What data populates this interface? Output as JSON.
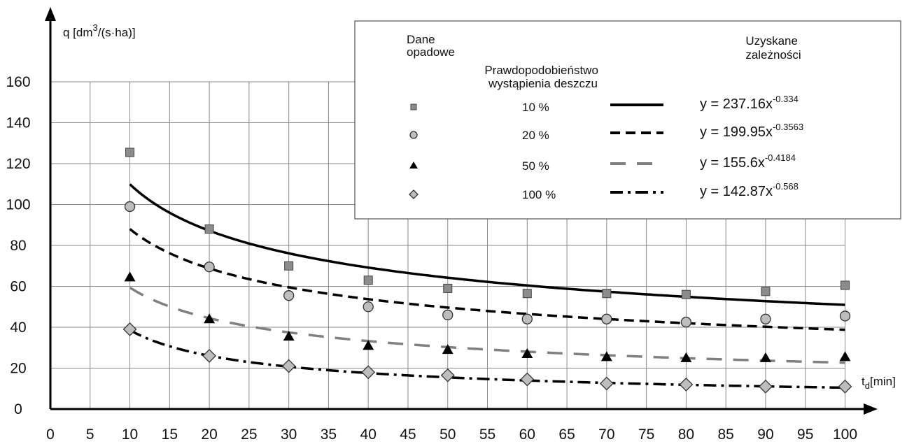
{
  "chart_data": {
    "type": "scatter",
    "ylabel": {
      "base": "q [dm",
      "sup": "3",
      "rest": "/(s·ha)]"
    },
    "xlabel": {
      "base": "t",
      "sub": "d",
      "rest": "[min]"
    },
    "xlim": [
      0,
      100
    ],
    "ylim": [
      0,
      160
    ],
    "xticks": [
      "0",
      "5",
      "10",
      "15",
      "20",
      "25",
      "30",
      "35",
      "40",
      "45",
      "50",
      "55",
      "60",
      "65",
      "70",
      "75",
      "80",
      "85",
      "90",
      "95",
      "100"
    ],
    "yticks": [
      "0",
      "20",
      "40",
      "60",
      "80",
      "100",
      "120",
      "140",
      "160"
    ],
    "grid": true,
    "legend": {
      "position": "top-right",
      "col1_header": [
        "Dane",
        "opadowe"
      ],
      "col2_header": [
        "Prawdopodobieństwo",
        "wystąpienia deszczu"
      ],
      "col3_header": [
        "Uzyskane",
        "zależności"
      ]
    },
    "series": [
      {
        "name": "10 %",
        "marker": "square",
        "color": "#8c8c8c",
        "line_color": "#000000",
        "dash": "solid",
        "equation": {
          "base": "y = 237.16x",
          "exp": "-0.334"
        },
        "coef": 237.16,
        "exponent": -0.334,
        "x": [
          10,
          20,
          30,
          40,
          50,
          60,
          70,
          80,
          90,
          100
        ],
        "y": [
          125.5,
          88,
          70,
          63,
          59,
          56.5,
          56.5,
          56,
          57.5,
          60.5
        ]
      },
      {
        "name": "20 %",
        "marker": "circle",
        "color": "#bdbdbd",
        "line_color": "#000000",
        "dash": "dash",
        "equation": {
          "base": "y = 199.95x",
          "exp": "-0.3563"
        },
        "coef": 199.95,
        "exponent": -0.3563,
        "x": [
          10,
          20,
          30,
          40,
          50,
          60,
          70,
          80,
          90,
          100
        ],
        "y": [
          99,
          69.5,
          55.5,
          50,
          46,
          44,
          44,
          42.5,
          44,
          45.5
        ]
      },
      {
        "name": "50 %",
        "marker": "triangle",
        "color": "#000000",
        "line_color": "#808080",
        "dash": "longdash",
        "equation": {
          "base": "y = 155.6x",
          "exp": "-0.4184"
        },
        "coef": 155.6,
        "exponent": -0.4184,
        "x": [
          10,
          20,
          30,
          40,
          50,
          60,
          70,
          80,
          90,
          100
        ],
        "y": [
          64.5,
          44,
          35.5,
          31,
          29,
          27,
          25.5,
          25,
          25,
          25.5
        ]
      },
      {
        "name": "100 %",
        "marker": "diamond",
        "color": "#bdbdbd",
        "line_color": "#000000",
        "dash": "dashdot",
        "equation": {
          "base": "y = 142.87x",
          "exp": "-0.568"
        },
        "coef": 142.87,
        "exponent": -0.568,
        "x": [
          10,
          20,
          30,
          40,
          50,
          60,
          70,
          80,
          90,
          100
        ],
        "y": [
          39,
          26,
          21,
          18,
          16.5,
          14.5,
          12.5,
          12,
          11,
          11
        ]
      }
    ]
  }
}
